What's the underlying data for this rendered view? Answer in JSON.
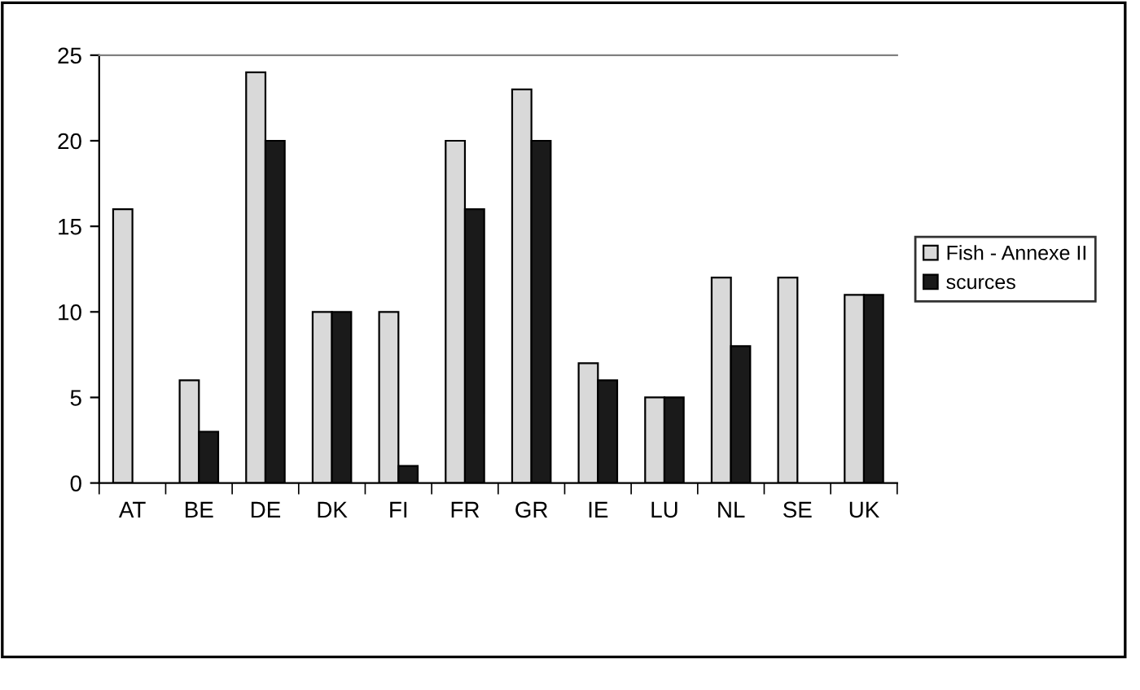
{
  "chart_data": {
    "type": "bar",
    "categories": [
      "AT",
      "BE",
      "DE",
      "DK",
      "FI",
      "FR",
      "GR",
      "IE",
      "LU",
      "NL",
      "SE",
      "UK"
    ],
    "series": [
      {
        "name": "Fish - Annexe II",
        "color": "#d9d9d9",
        "values": [
          16,
          6,
          24,
          10,
          10,
          20,
          23,
          7,
          5,
          12,
          12,
          11
        ]
      },
      {
        "name": "scurces",
        "color": "#1a1a1a",
        "values": [
          null,
          3,
          20,
          10,
          1,
          16,
          20,
          6,
          5,
          8,
          null,
          11
        ]
      }
    ],
    "ylim": [
      0,
      25
    ],
    "yticks": [
      0,
      5,
      10,
      15,
      20,
      25
    ],
    "grid": false,
    "legend": "right"
  }
}
